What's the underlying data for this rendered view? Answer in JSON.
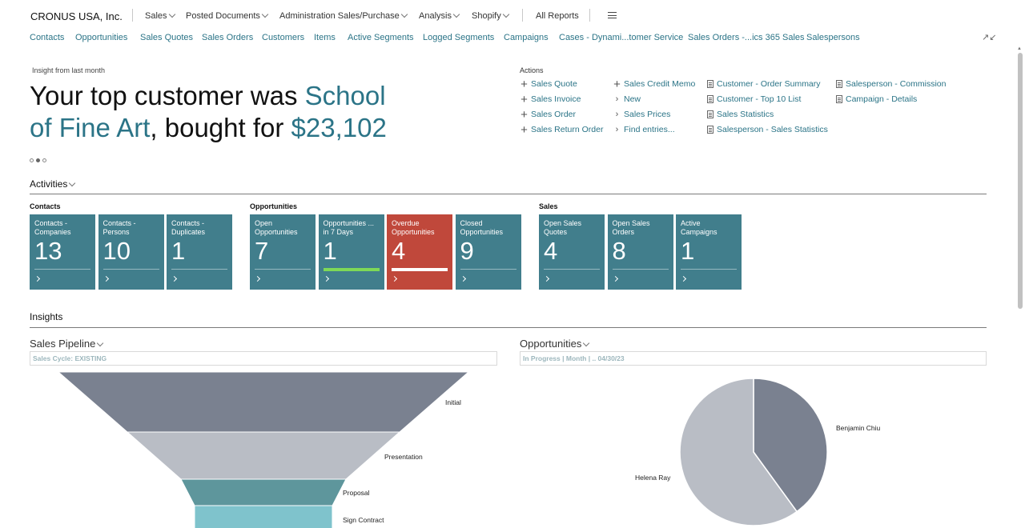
{
  "company": "CRONUS USA, Inc.",
  "top_nav": [
    {
      "label": "Sales",
      "dropdown": true
    },
    {
      "label": "Posted Documents",
      "dropdown": true
    },
    {
      "label": "Administration Sales/Purchase",
      "dropdown": true
    },
    {
      "label": "Analysis",
      "dropdown": true
    },
    {
      "label": "Shopify",
      "dropdown": true
    },
    {
      "label": "All Reports",
      "dropdown": false
    }
  ],
  "links": [
    "Contacts",
    "Opportunities",
    "Sales Quotes",
    "Sales Orders",
    "Customers",
    "Items",
    "Active Segments",
    "Logged Segments",
    "Campaigns",
    "Cases - Dynami...tomer Service",
    "Sales Orders -...ics 365 Sales",
    "Salespersons"
  ],
  "headline": {
    "caption": "Insight from last month",
    "part1": "Your top customer was ",
    "customer": "School of Fine Art",
    "part2": ", bought for ",
    "amount": "$23,102"
  },
  "actions": {
    "caption": "Actions",
    "col1": [
      "Sales Quote",
      "Sales Invoice",
      "Sales Order",
      "Sales Return Order"
    ],
    "col2": [
      {
        "icon": "plus",
        "label": "Sales Credit Memo"
      },
      {
        "icon": "chevron",
        "label": "New"
      },
      {
        "icon": "chevron",
        "label": "Sales Prices"
      },
      {
        "icon": "chevron",
        "label": "Find entries..."
      }
    ],
    "col3": [
      "Customer - Order Summary",
      "Customer - Top 10 List",
      "Sales Statistics",
      "Salesperson - Sales Statistics"
    ],
    "col4": [
      "Salesperson - Commission",
      "Campaign - Details"
    ]
  },
  "activities": {
    "title": "Activities",
    "groups": [
      {
        "caption": "Contacts",
        "tiles": [
          {
            "label": "Contacts -\nCompanies",
            "value": "13"
          },
          {
            "label": "Contacts -\nPersons",
            "value": "10"
          },
          {
            "label": "Contacts -\nDuplicates",
            "value": "1"
          }
        ]
      },
      {
        "caption": "Opportunities",
        "tiles": [
          {
            "label": "Open\nOpportunities",
            "value": "7"
          },
          {
            "label": "Opportunities ...\nin 7 Days",
            "value": "1",
            "indicator": "#7ed957"
          },
          {
            "label": "Overdue\nOpportunities",
            "value": "4",
            "indicator": "#ffffff",
            "color": "#c0483b"
          },
          {
            "label": "Closed\nOpportunities",
            "value": "9"
          }
        ]
      },
      {
        "caption": "Sales",
        "tiles": [
          {
            "label": "Open Sales\nQuotes",
            "value": "4"
          },
          {
            "label": "Open Sales\nOrders",
            "value": "8"
          },
          {
            "label": "Active\nCampaigns",
            "value": "1"
          }
        ]
      }
    ]
  },
  "insights": {
    "title": "Insights",
    "pipeline": {
      "title": "Sales Pipeline",
      "filter": "Sales Cycle: EXISTING"
    },
    "opportunities": {
      "title": "Opportunities",
      "filter": "In Progress | Month | .. 04/30/23"
    }
  },
  "chart_data": [
    {
      "type": "funnel",
      "stages": [
        "Initial",
        "Presentation",
        "Proposal",
        "Sign Contract"
      ],
      "colors": [
        "#7a8190",
        "#b9bdc5",
        "#5e969c",
        "#7fc3cc"
      ]
    },
    {
      "type": "pie",
      "labels": [
        "Benjamin Chiu",
        "Helena Ray"
      ],
      "values": [
        40,
        60
      ],
      "colors": [
        "#7a8190",
        "#b9bdc5"
      ]
    }
  ]
}
